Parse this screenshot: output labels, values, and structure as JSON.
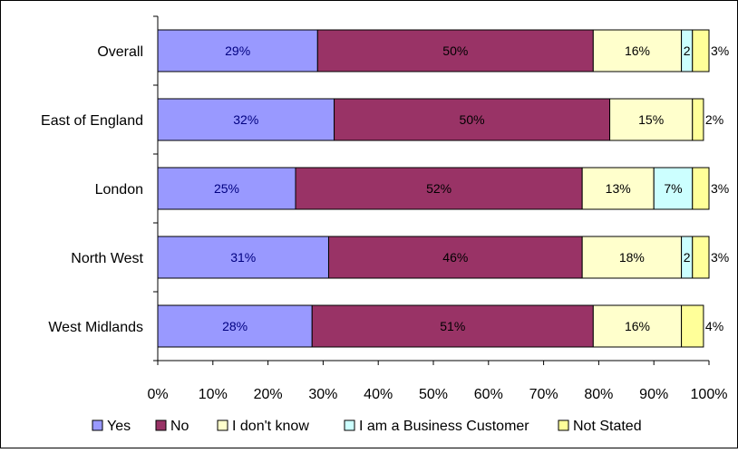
{
  "chart_data": {
    "type": "bar",
    "orientation": "horizontal",
    "stacked": true,
    "percent_stacked": true,
    "categories": [
      "Overall",
      "East of England",
      "London",
      "North West",
      "West Midlands"
    ],
    "series": [
      {
        "name": "Yes",
        "values": [
          29,
          32,
          25,
          31,
          28
        ],
        "labels": [
          "29%",
          "32%",
          "25%",
          "31%",
          "28%"
        ]
      },
      {
        "name": "No",
        "values": [
          50,
          50,
          52,
          46,
          51
        ],
        "labels": [
          "50%",
          "50%",
          "52%",
          "46%",
          "51%"
        ]
      },
      {
        "name": "I don't know",
        "values": [
          16,
          15,
          13,
          18,
          16
        ],
        "labels": [
          "16%",
          "15%",
          "13%",
          "18%",
          "16%"
        ]
      },
      {
        "name": "I am a Business Customer",
        "values": [
          2,
          0,
          7,
          2,
          0
        ],
        "labels": [
          "2",
          "",
          "7%",
          "2",
          ""
        ]
      },
      {
        "name": "Not Stated",
        "values": [
          3,
          2,
          3,
          3,
          4
        ],
        "labels": [
          "3%",
          "2%",
          "3%",
          "3%",
          "4%"
        ]
      }
    ],
    "colors": [
      "#9999ff",
      "#993366",
      "#ffffcc",
      "#ccffff",
      "#ffff99"
    ],
    "label_colors": [
      "#000080",
      "#000000",
      "#000000",
      "#000000",
      "#000000"
    ],
    "xticks": [
      "0%",
      "10%",
      "20%",
      "30%",
      "40%",
      "50%",
      "60%",
      "70%",
      "80%",
      "90%",
      "100%"
    ],
    "xlim": [
      0,
      100
    ],
    "grid": false,
    "legend_position": "bottom",
    "title": "",
    "xlabel": "",
    "ylabel": ""
  }
}
